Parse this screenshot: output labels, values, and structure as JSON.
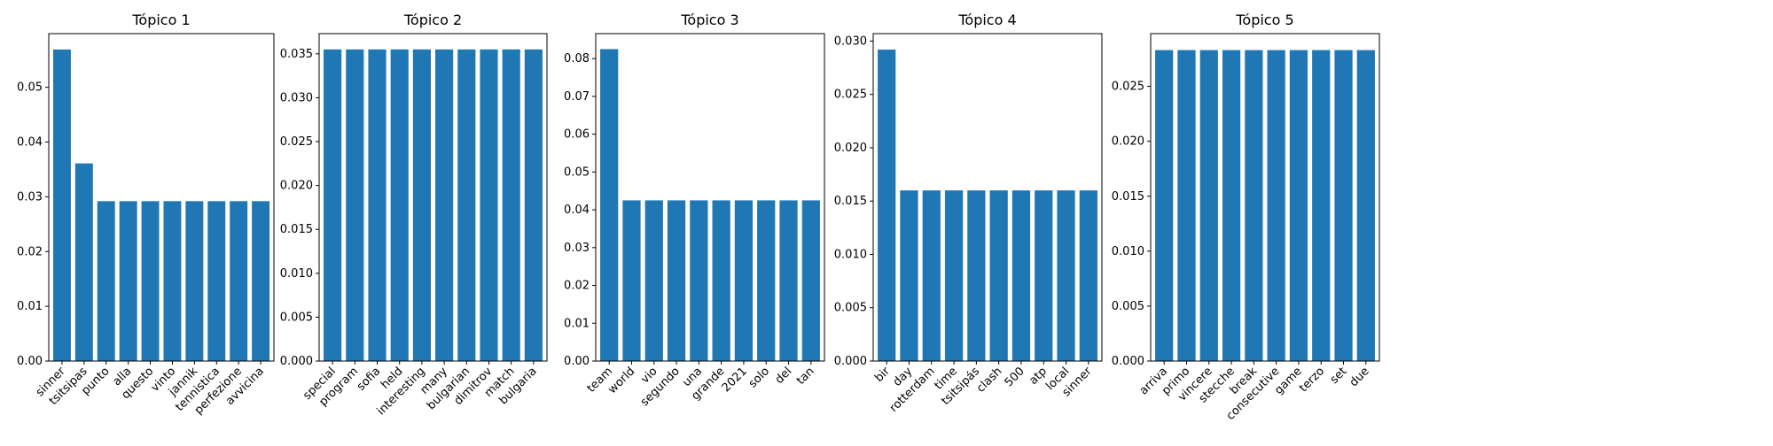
{
  "chart_data": [
    {
      "type": "bar",
      "title": "Tópico 1",
      "categories": [
        "sinner",
        "tsitsipas",
        "punto",
        "alla",
        "questo",
        "vinto",
        "jannik",
        "tennistica",
        "perfezione",
        "avvicina"
      ],
      "values": [
        0.0569,
        0.0361,
        0.0292,
        0.0292,
        0.0292,
        0.0292,
        0.0292,
        0.0292,
        0.0292,
        0.0292
      ],
      "ylim": [
        0,
        0.0598
      ],
      "yticks": [
        0.0,
        0.01,
        0.02,
        0.03,
        0.04,
        0.05
      ],
      "ytick_labels": [
        "0.00",
        "0.01",
        "0.02",
        "0.03",
        "0.04",
        "0.05"
      ],
      "color": "#1f77b4"
    },
    {
      "type": "bar",
      "title": "Tópico 2",
      "categories": [
        "special",
        "program",
        "sofia",
        "held",
        "interesting",
        "many",
        "bulgarian",
        "dimitrov",
        "match",
        "bulgaria"
      ],
      "values": [
        0.0355,
        0.0355,
        0.0355,
        0.0355,
        0.0355,
        0.0355,
        0.0355,
        0.0355,
        0.0355,
        0.0355
      ],
      "ylim": [
        0,
        0.0373
      ],
      "yticks": [
        0.0,
        0.005,
        0.01,
        0.015,
        0.02,
        0.025,
        0.03,
        0.035
      ],
      "ytick_labels": [
        "0.000",
        "0.005",
        "0.010",
        "0.015",
        "0.020",
        "0.025",
        "0.030",
        "0.035"
      ],
      "color": "#1f77b4"
    },
    {
      "type": "bar",
      "title": "Tópico 3",
      "categories": [
        "team",
        "world",
        "vio",
        "segundo",
        "una",
        "grande",
        "2021",
        "solo",
        "del",
        "tan"
      ],
      "values": [
        0.0825,
        0.0425,
        0.0425,
        0.0425,
        0.0425,
        0.0425,
        0.0425,
        0.0425,
        0.0425,
        0.0425
      ],
      "ylim": [
        0,
        0.0866
      ],
      "yticks": [
        0.0,
        0.01,
        0.02,
        0.03,
        0.04,
        0.05,
        0.06,
        0.07,
        0.08
      ],
      "ytick_labels": [
        "0.00",
        "0.01",
        "0.02",
        "0.03",
        "0.04",
        "0.05",
        "0.06",
        "0.07",
        "0.08"
      ],
      "color": "#1f77b4"
    },
    {
      "type": "bar",
      "title": "Tópico 4",
      "categories": [
        "bir",
        "day",
        "rotterdam",
        "time",
        "tsitsipás",
        "clash",
        "500",
        "atp",
        "local",
        "sinner"
      ],
      "values": [
        0.0292,
        0.016,
        0.016,
        0.016,
        0.016,
        0.016,
        0.016,
        0.016,
        0.016,
        0.016
      ],
      "ylim": [
        0,
        0.0307
      ],
      "yticks": [
        0.0,
        0.005,
        0.01,
        0.015,
        0.02,
        0.025,
        0.03
      ],
      "ytick_labels": [
        "0.000",
        "0.005",
        "0.010",
        "0.015",
        "0.020",
        "0.025",
        "0.030"
      ],
      "color": "#1f77b4"
    },
    {
      "type": "bar",
      "title": "Tópico 5",
      "categories": [
        "arriva",
        "primo",
        "vincere",
        "stecche",
        "break",
        "consecutive",
        "game",
        "terzo",
        "set",
        "due"
      ],
      "values": [
        0.0283,
        0.0283,
        0.0283,
        0.0283,
        0.0283,
        0.0283,
        0.0283,
        0.0283,
        0.0283,
        0.0283
      ],
      "ylim": [
        0,
        0.0298
      ],
      "yticks": [
        0.0,
        0.005,
        0.01,
        0.015,
        0.02,
        0.025
      ],
      "ytick_labels": [
        "0.000",
        "0.005",
        "0.010",
        "0.015",
        "0.020",
        "0.025"
      ],
      "color": "#1f77b4"
    }
  ]
}
